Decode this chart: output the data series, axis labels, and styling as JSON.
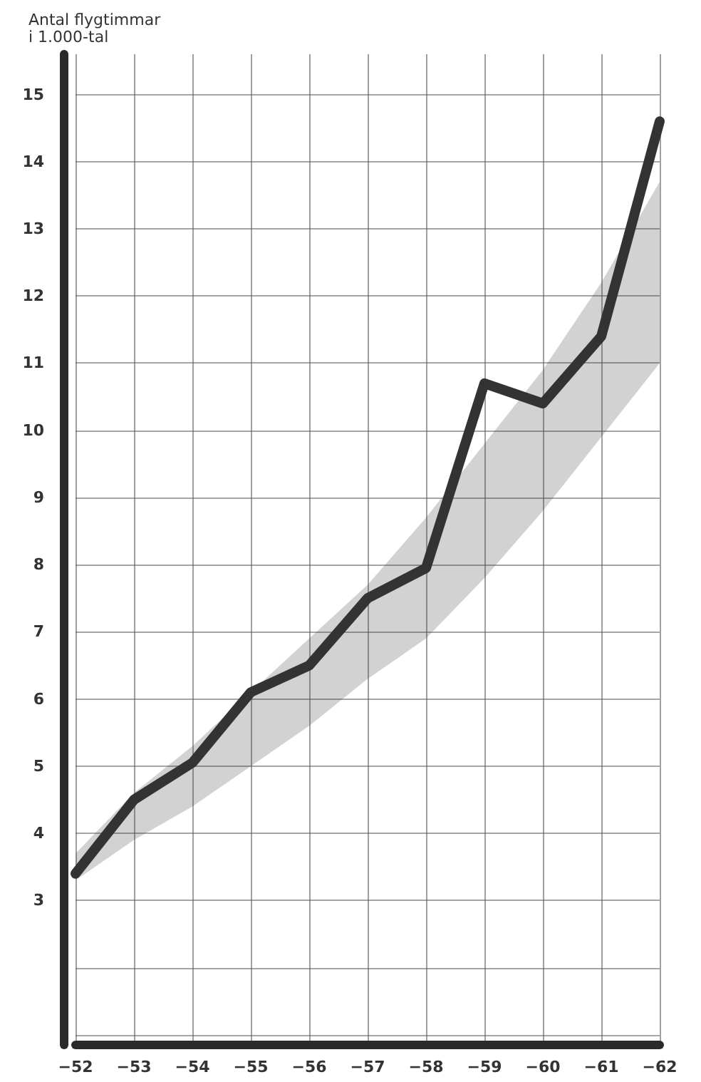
{
  "chart_data": {
    "type": "line",
    "ylabel": "Antal flygtimmar\ni 1.000-tal",
    "categories": [
      "−52",
      "−53",
      "−54",
      "−55",
      "−56",
      "−57",
      "−58",
      "−59",
      "−60",
      "−61",
      "−62"
    ],
    "ylim": [
      0.85,
      15.6
    ],
    "yticks": [
      {
        "value": 1,
        "label": null
      },
      {
        "value": 2,
        "label": null
      },
      3,
      4,
      5,
      6,
      7,
      8,
      9,
      10,
      11,
      12,
      13,
      14,
      15
    ],
    "series": [
      {
        "color": "#333333",
        "values": [
          3.4,
          4.5,
          5.05,
          6.1,
          6.5,
          7.5,
          7.95,
          10.7,
          10.4,
          11.4,
          14.6
        ],
        "lower": [
          3.3,
          3.9,
          4.4,
          5.0,
          5.6,
          6.3,
          6.9,
          7.8,
          8.8,
          9.9,
          11.0
        ],
        "upper": [
          3.7,
          4.6,
          5.3,
          6.1,
          6.9,
          7.7,
          8.7,
          9.8,
          10.9,
          12.2,
          13.7
        ]
      }
    ],
    "grid": true,
    "line_style": "solid"
  }
}
